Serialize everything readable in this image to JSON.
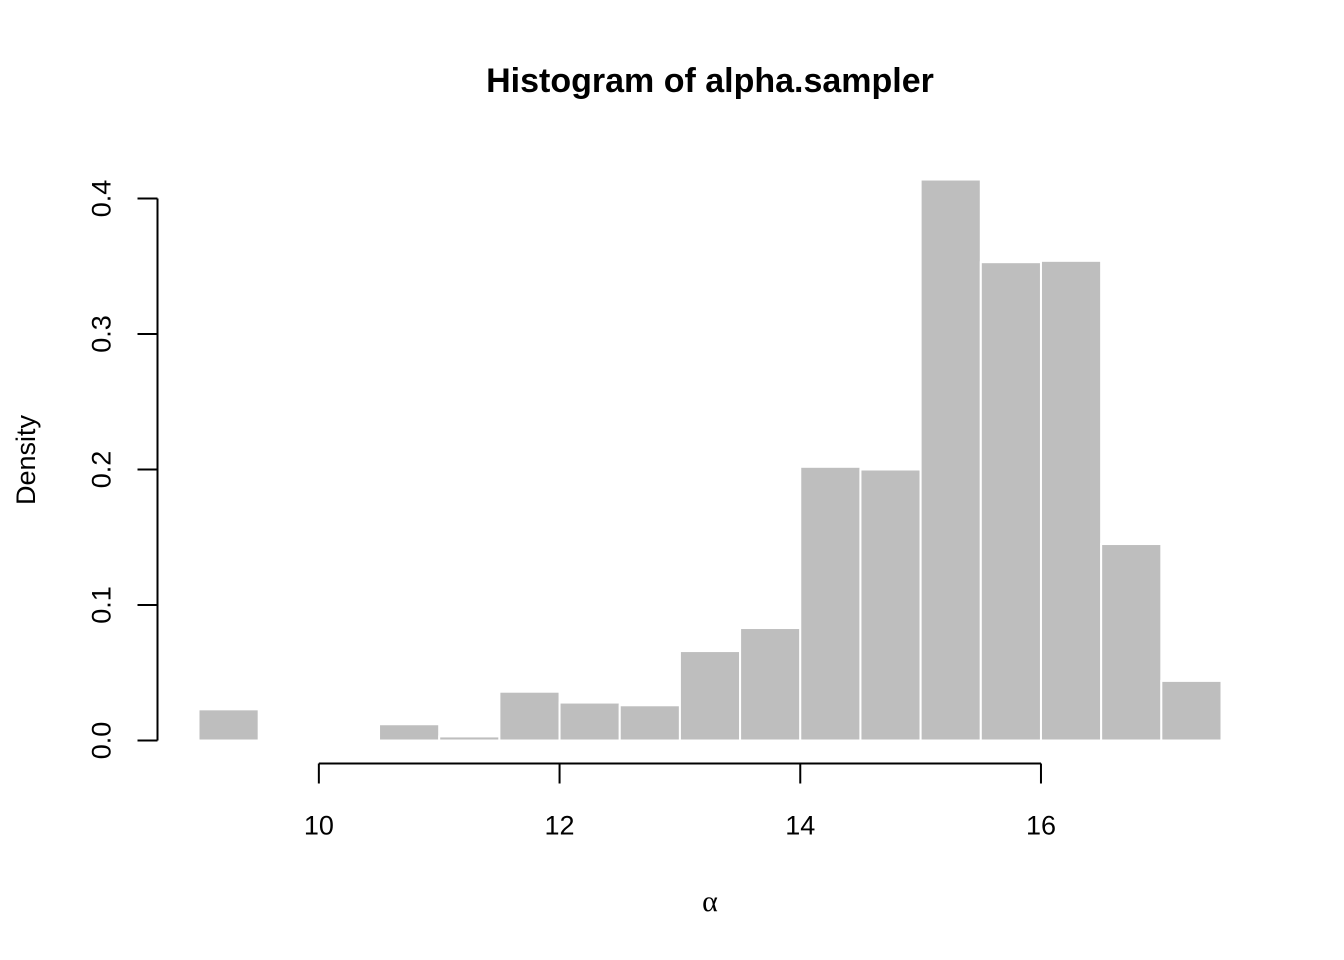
{
  "chart_data": {
    "type": "bar",
    "title": "Histogram of alpha.sampler",
    "xlabel": "α",
    "ylabel": "Density",
    "xlim": [
      9,
      17.5
    ],
    "ylim": [
      0,
      0.4
    ],
    "bin_edges": [
      9.0,
      9.5,
      10.0,
      10.5,
      11.0,
      11.5,
      12.0,
      12.5,
      13.0,
      13.5,
      14.0,
      14.5,
      15.0,
      15.5,
      16.0,
      16.5,
      17.0,
      17.5
    ],
    "values": [
      0.023,
      0.0,
      0.0,
      0.012,
      0.003,
      0.036,
      0.028,
      0.026,
      0.066,
      0.083,
      0.202,
      0.2,
      0.414,
      0.353,
      0.354,
      0.145,
      0.044
    ],
    "x_ticks": [
      10,
      12,
      14,
      16
    ],
    "x_tick_labels": [
      "10",
      "12",
      "14",
      "16"
    ],
    "y_ticks": [
      0.0,
      0.1,
      0.2,
      0.3,
      0.4
    ],
    "y_tick_labels": [
      "0.0",
      "0.1",
      "0.2",
      "0.3",
      "0.4"
    ],
    "bar_color": "#bebebe",
    "bar_border_color": "#ffffff",
    "grid": false,
    "legend": "none"
  }
}
